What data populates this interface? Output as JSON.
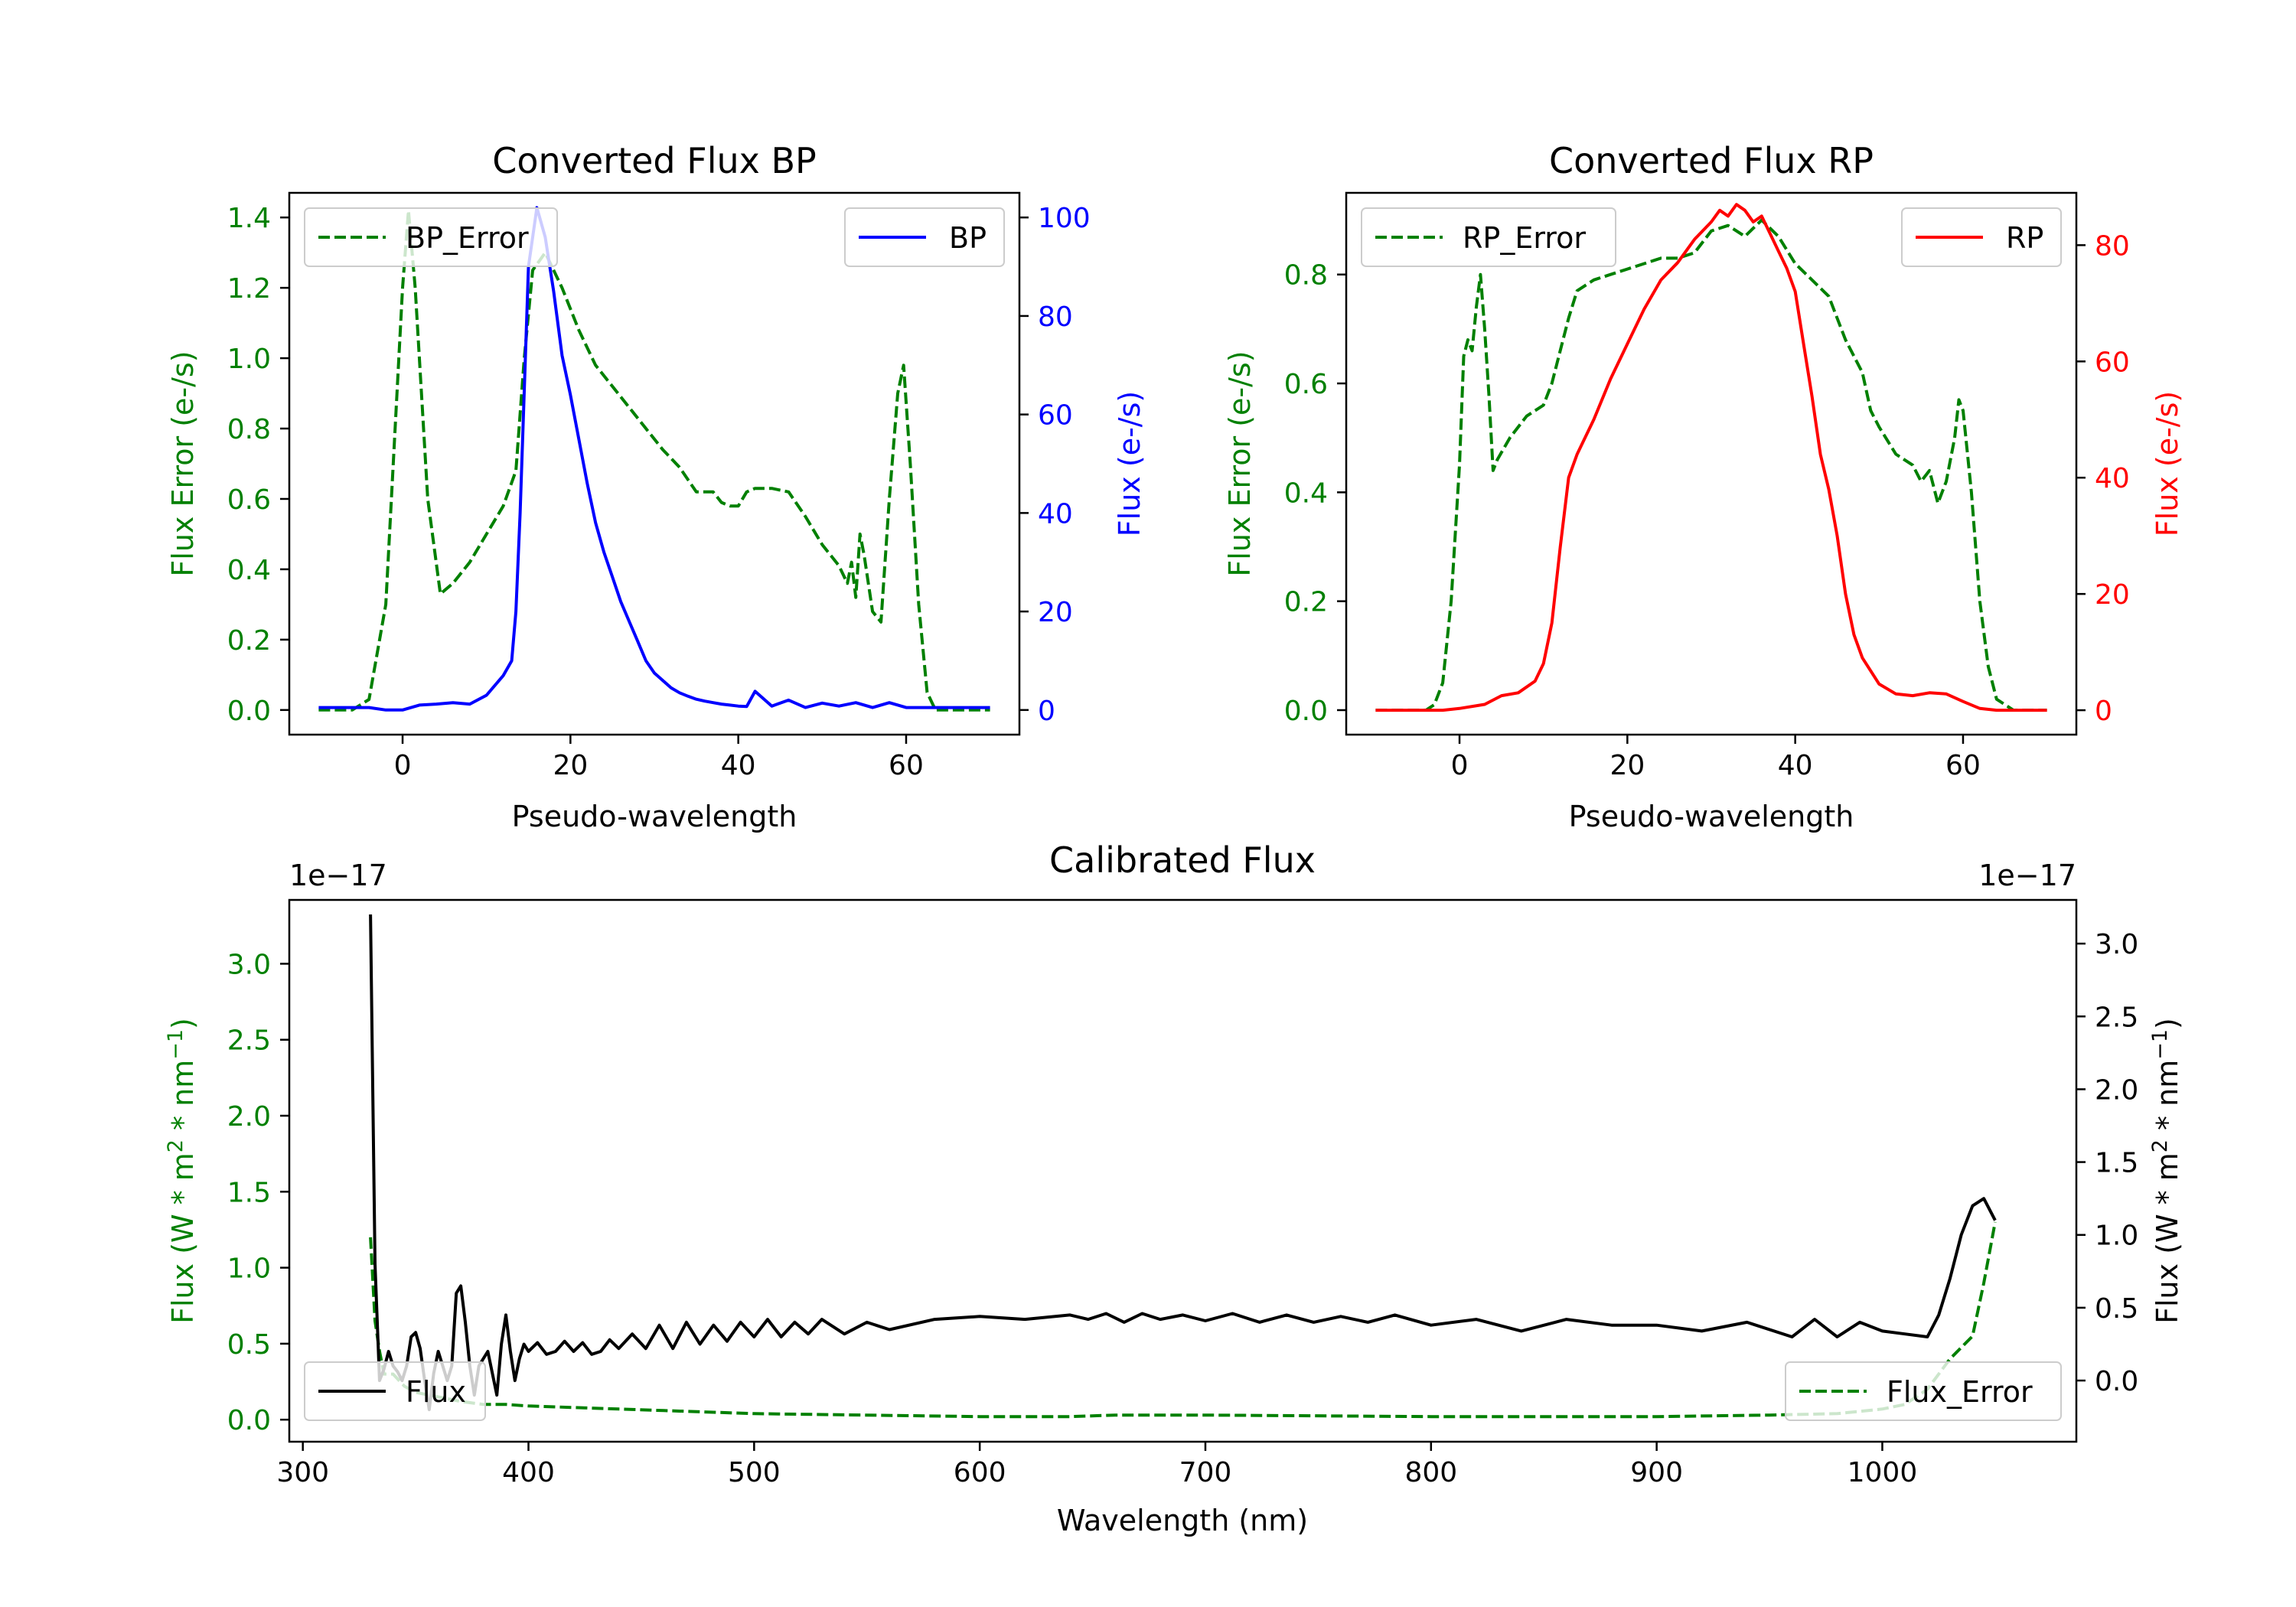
{
  "colors": {
    "green": "#008000",
    "blue": "#0000ff",
    "red": "#ff0000",
    "black": "#000000"
  },
  "chart_data": [
    {
      "id": "bp",
      "type": "line",
      "title": "Converted Flux BP",
      "xlabel": "Pseudo-wavelength",
      "ylabel_left": "Flux Error (e-/s)",
      "ylabel_right": "Flux (e-/s)",
      "xlim": [
        -13.5,
        73.5
      ],
      "ylim_left": [
        -0.07,
        1.47
      ],
      "ylim_right": [
        -5,
        105
      ],
      "xticks": [
        0,
        20,
        40,
        60
      ],
      "xtick_labels": [
        "0",
        "20",
        "40",
        "60"
      ],
      "yticks_left": [
        0.0,
        0.2,
        0.4,
        0.6,
        0.8,
        1.0,
        1.2,
        1.4
      ],
      "ytick_labels_left": [
        "0.0",
        "0.2",
        "0.4",
        "0.6",
        "0.8",
        "1.0",
        "1.2",
        "1.4"
      ],
      "yticks_right": [
        0,
        20,
        40,
        60,
        80,
        100
      ],
      "ytick_labels_right": [
        "0",
        "20",
        "40",
        "60",
        "80",
        "100"
      ],
      "legend_left": "BP_Error",
      "legend_right": "BP",
      "series": [
        {
          "name": "BP_Error",
          "axis": "left",
          "style": "dashed",
          "color": "green",
          "x": [
            -10,
            -6,
            -4,
            -2,
            0,
            0.7,
            1.5,
            3,
            4.5,
            6,
            8,
            10,
            12,
            13.5,
            14.5,
            15.5,
            17,
            19,
            21,
            23,
            25,
            27,
            29,
            31,
            33,
            35,
            37,
            38,
            39,
            40,
            41,
            42,
            44,
            46,
            48,
            50,
            52,
            53,
            53.5,
            54,
            54.5,
            55,
            56,
            57,
            58,
            59,
            59.7,
            60.5,
            61.5,
            62.5,
            63.5,
            65,
            67,
            70
          ],
          "y": [
            0.0,
            0.0,
            0.03,
            0.3,
            1.2,
            1.42,
            1.2,
            0.6,
            0.33,
            0.36,
            0.42,
            0.5,
            0.58,
            0.68,
            1.0,
            1.25,
            1.3,
            1.2,
            1.08,
            0.98,
            0.92,
            0.86,
            0.8,
            0.74,
            0.69,
            0.62,
            0.62,
            0.59,
            0.58,
            0.58,
            0.62,
            0.63,
            0.63,
            0.62,
            0.55,
            0.47,
            0.41,
            0.36,
            0.42,
            0.32,
            0.5,
            0.44,
            0.28,
            0.25,
            0.6,
            0.9,
            0.98,
            0.7,
            0.3,
            0.05,
            0.0,
            0.0,
            0.0,
            0.0
          ]
        },
        {
          "name": "BP",
          "axis": "right",
          "style": "solid",
          "color": "blue",
          "x": [
            -10,
            -4,
            -2,
            0,
            2,
            4,
            6,
            8,
            10,
            12,
            13,
            13.5,
            14,
            15,
            16,
            17,
            18,
            19,
            20,
            21,
            22,
            23,
            24,
            25,
            26,
            27,
            28,
            29,
            30,
            31,
            32,
            33,
            34,
            35,
            36,
            37,
            38,
            39,
            40,
            41,
            42,
            44,
            46,
            48,
            50,
            52,
            54,
            56,
            58,
            60,
            64,
            70
          ],
          "y": [
            0.5,
            0.5,
            0.0,
            0.0,
            1.0,
            1.2,
            1.5,
            1.2,
            3.0,
            7.0,
            10.0,
            20.0,
            40.0,
            90.0,
            102.0,
            96.0,
            85.0,
            72.0,
            64.0,
            55.0,
            46.0,
            38.0,
            32.0,
            27.0,
            22.0,
            18.0,
            14.0,
            10.0,
            7.5,
            6.0,
            4.5,
            3.5,
            2.8,
            2.2,
            1.8,
            1.5,
            1.2,
            1.0,
            0.8,
            0.7,
            3.8,
            0.8,
            2.0,
            0.5,
            1.4,
            0.8,
            1.5,
            0.5,
            1.5,
            0.5,
            0.5,
            0.5
          ]
        }
      ]
    },
    {
      "id": "rp",
      "type": "line",
      "title": "Converted Flux RP",
      "xlabel": "Pseudo-wavelength",
      "ylabel_left": "Flux Error (e-/s)",
      "ylabel_right": "Flux (e-/s)",
      "xlim": [
        -13.5,
        73.5
      ],
      "ylim_left": [
        -0.045,
        0.95
      ],
      "ylim_right": [
        -4.2,
        89
      ],
      "xticks": [
        0,
        20,
        40,
        60
      ],
      "xtick_labels": [
        "0",
        "20",
        "40",
        "60"
      ],
      "yticks_left": [
        0.0,
        0.2,
        0.4,
        0.6,
        0.8
      ],
      "ytick_labels_left": [
        "0.0",
        "0.2",
        "0.4",
        "0.6",
        "0.8"
      ],
      "yticks_right": [
        0,
        20,
        40,
        60,
        80
      ],
      "ytick_labels_right": [
        "0",
        "20",
        "40",
        "60",
        "80"
      ],
      "legend_left": "RP_Error",
      "legend_right": "RP",
      "series": [
        {
          "name": "RP_Error",
          "axis": "left",
          "style": "dashed",
          "color": "green",
          "x": [
            -10,
            -6,
            -4,
            -3,
            -2,
            -1,
            0,
            0.5,
            1,
            1.5,
            2,
            2.5,
            3,
            3.5,
            4,
            4.5,
            6,
            8,
            10,
            11,
            12,
            13,
            14,
            16,
            18,
            20,
            22,
            24,
            26,
            28,
            30,
            32,
            34,
            36,
            38,
            40,
            42,
            44,
            46,
            48,
            49,
            50,
            52,
            54,
            55,
            56,
            57,
            58,
            59,
            59.5,
            60,
            61,
            62,
            63,
            64,
            66,
            70
          ],
          "y": [
            0.0,
            0.0,
            0.0,
            0.01,
            0.05,
            0.2,
            0.45,
            0.65,
            0.68,
            0.66,
            0.74,
            0.8,
            0.7,
            0.58,
            0.44,
            0.46,
            0.5,
            0.54,
            0.56,
            0.6,
            0.66,
            0.72,
            0.77,
            0.79,
            0.8,
            0.81,
            0.82,
            0.83,
            0.83,
            0.84,
            0.88,
            0.89,
            0.87,
            0.9,
            0.87,
            0.82,
            0.79,
            0.76,
            0.68,
            0.62,
            0.55,
            0.52,
            0.47,
            0.45,
            0.42,
            0.44,
            0.38,
            0.42,
            0.5,
            0.57,
            0.55,
            0.4,
            0.2,
            0.08,
            0.02,
            0.0,
            0.0
          ]
        },
        {
          "name": "RP",
          "axis": "right",
          "style": "solid",
          "color": "red",
          "x": [
            -10,
            -2,
            0,
            3,
            5,
            7,
            9,
            10,
            11,
            12,
            13,
            14,
            16,
            18,
            20,
            22,
            24,
            26,
            28,
            30,
            31,
            32,
            33,
            34,
            35,
            36,
            37,
            38,
            39,
            40,
            41,
            42,
            43,
            44,
            45,
            46,
            47,
            48,
            50,
            52,
            54,
            56,
            58,
            60,
            62,
            64,
            70
          ],
          "y": [
            0.0,
            0.0,
            0.3,
            1.0,
            2.5,
            3.0,
            5.0,
            8.0,
            15.0,
            28.0,
            40.0,
            44.0,
            50.0,
            57.0,
            63.0,
            69.0,
            74.0,
            77.0,
            81.0,
            84.0,
            86.0,
            85.0,
            87.0,
            86.0,
            84.0,
            85.0,
            82.0,
            79.0,
            76.0,
            72.0,
            63.0,
            54.0,
            44.0,
            38.0,
            30.0,
            20.0,
            13.0,
            9.0,
            4.5,
            2.8,
            2.5,
            3.0,
            2.8,
            1.5,
            0.3,
            0.0,
            0.0
          ]
        }
      ]
    },
    {
      "id": "cal",
      "type": "line",
      "title": "Calibrated Flux",
      "xlabel": "Wavelength (nm)",
      "ylabel_left": "Flux (W * m$^2$ * nm$^{-1}$)",
      "ylabel_right": "Flux (W * m$^2$ * nm$^{-1}$)",
      "offset_left": "1e−17",
      "offset_right": "1e−17",
      "xlim": [
        294,
        1086
      ],
      "ylim_left": [
        -0.145,
        3.42
      ],
      "ylim_right": [
        -0.42,
        3.3
      ],
      "xticks": [
        300,
        400,
        500,
        600,
        700,
        800,
        900,
        1000
      ],
      "xtick_labels": [
        "300",
        "400",
        "500",
        "600",
        "700",
        "800",
        "900",
        "1000"
      ],
      "yticks_left": [
        0.0,
        0.5,
        1.0,
        1.5,
        2.0,
        2.5,
        3.0
      ],
      "ytick_labels_left": [
        "0.0",
        "0.5",
        "1.0",
        "1.5",
        "2.0",
        "2.5",
        "3.0"
      ],
      "yticks_right": [
        0.0,
        0.5,
        1.0,
        1.5,
        2.0,
        2.5,
        3.0
      ],
      "ytick_labels_right": [
        "0.0",
        "0.5",
        "1.0",
        "1.5",
        "2.0",
        "2.5",
        "3.0"
      ],
      "legend_left": "Flux",
      "legend_right": "Flux_Error",
      "series": [
        {
          "name": "Flux_Error",
          "axis": "left",
          "style": "dashed",
          "color": "green",
          "x": [
            330,
            332,
            334,
            336,
            340,
            345,
            350,
            360,
            370,
            380,
            390,
            400,
            420,
            440,
            460,
            500,
            600,
            640,
            660,
            700,
            800,
            900,
            950,
            980,
            1000,
            1010,
            1020,
            1030,
            1040,
            1045,
            1050
          ],
          "y": [
            1.2,
            0.65,
            0.45,
            0.3,
            0.3,
            0.22,
            0.18,
            0.15,
            0.12,
            0.1,
            0.1,
            0.09,
            0.08,
            0.07,
            0.06,
            0.04,
            0.02,
            0.02,
            0.03,
            0.03,
            0.02,
            0.02,
            0.03,
            0.04,
            0.07,
            0.1,
            0.2,
            0.4,
            0.55,
            0.9,
            1.3
          ]
        },
        {
          "name": "Flux",
          "axis": "right",
          "style": "solid",
          "color": "black",
          "x": [
            330,
            332,
            334,
            336,
            338,
            340,
            342,
            344,
            346,
            348,
            350,
            352,
            354,
            356,
            358,
            360,
            362,
            364,
            366,
            368,
            370,
            372,
            374,
            376,
            378,
            380,
            382,
            384,
            386,
            388,
            390,
            392,
            394,
            396,
            398,
            400,
            404,
            408,
            412,
            416,
            420,
            424,
            428,
            432,
            436,
            440,
            446,
            452,
            458,
            464,
            470,
            476,
            482,
            488,
            494,
            500,
            506,
            512,
            518,
            524,
            530,
            540,
            550,
            560,
            580,
            600,
            620,
            640,
            648,
            656,
            664,
            672,
            680,
            690,
            700,
            712,
            724,
            736,
            748,
            760,
            772,
            784,
            800,
            820,
            840,
            860,
            880,
            900,
            920,
            940,
            960,
            970,
            980,
            990,
            1000,
            1010,
            1020,
            1025,
            1030,
            1035,
            1040,
            1045,
            1050
          ],
          "y": [
            3.2,
            0.8,
            0.0,
            0.08,
            0.2,
            0.1,
            0.06,
            0.0,
            0.1,
            0.3,
            0.33,
            0.22,
            0.0,
            -0.2,
            0.05,
            0.2,
            0.1,
            0.0,
            0.1,
            0.6,
            0.65,
            0.4,
            0.1,
            -0.1,
            0.1,
            0.15,
            0.2,
            0.05,
            -0.1,
            0.25,
            0.45,
            0.2,
            0.0,
            0.15,
            0.25,
            0.2,
            0.26,
            0.18,
            0.2,
            0.27,
            0.2,
            0.26,
            0.18,
            0.2,
            0.28,
            0.22,
            0.32,
            0.22,
            0.38,
            0.22,
            0.4,
            0.25,
            0.38,
            0.27,
            0.4,
            0.3,
            0.42,
            0.3,
            0.4,
            0.32,
            0.42,
            0.32,
            0.4,
            0.35,
            0.42,
            0.44,
            0.42,
            0.45,
            0.42,
            0.46,
            0.4,
            0.46,
            0.42,
            0.45,
            0.41,
            0.46,
            0.4,
            0.45,
            0.4,
            0.44,
            0.4,
            0.45,
            0.38,
            0.42,
            0.34,
            0.42,
            0.38,
            0.38,
            0.34,
            0.4,
            0.3,
            0.42,
            0.3,
            0.4,
            0.34,
            0.32,
            0.3,
            0.45,
            0.7,
            1.0,
            1.2,
            1.25,
            1.1
          ]
        }
      ]
    }
  ]
}
